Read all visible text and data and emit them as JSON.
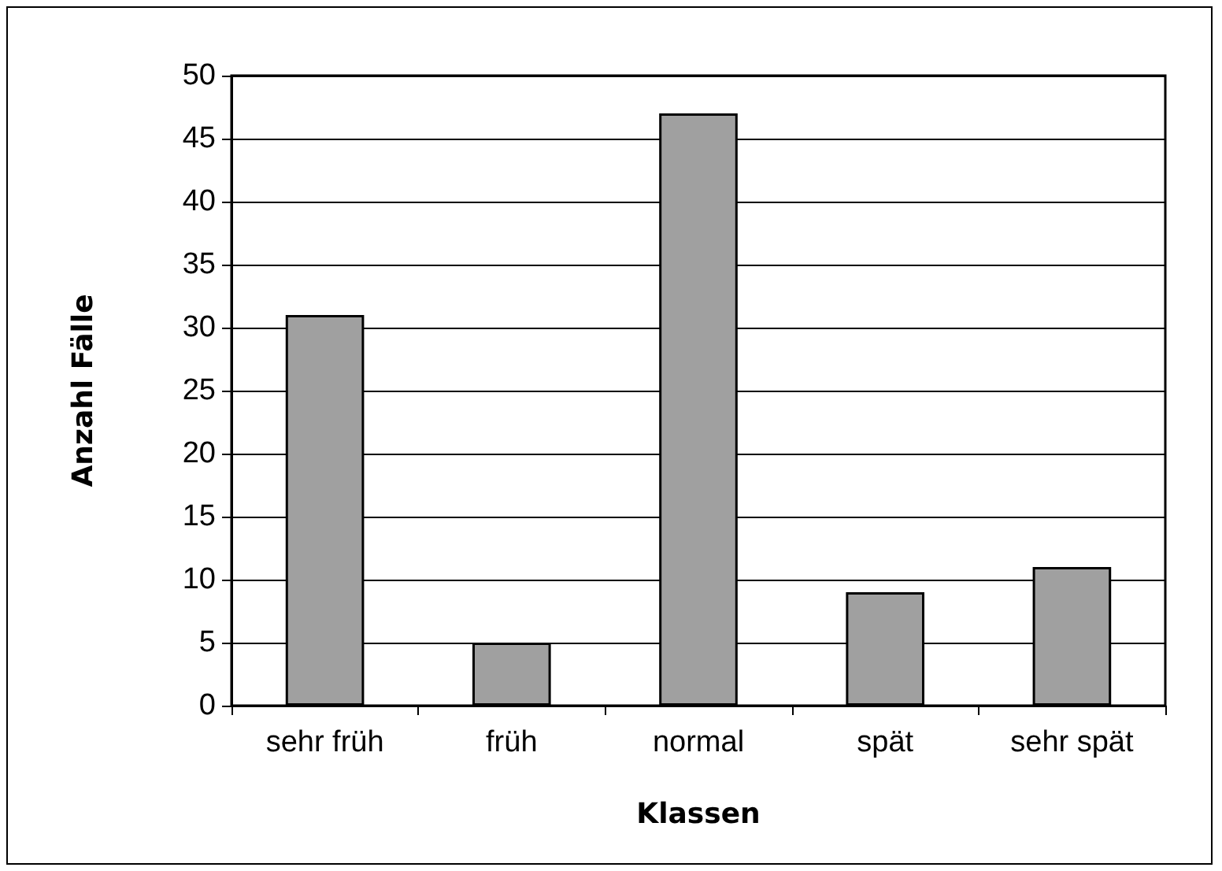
{
  "chart_data": {
    "type": "bar",
    "xlabel": "Klassen",
    "ylabel": "Anzahl Fälle",
    "categories": [
      "sehr früh",
      "früh",
      "normal",
      "spät",
      "sehr spät"
    ],
    "values": [
      31,
      5,
      47,
      9,
      11
    ],
    "color": "#a0a0a0",
    "ylim": [
      0,
      50
    ],
    "yticks": [
      0,
      5,
      10,
      15,
      20,
      25,
      30,
      35,
      40,
      45,
      50
    ],
    "grid": "y"
  }
}
